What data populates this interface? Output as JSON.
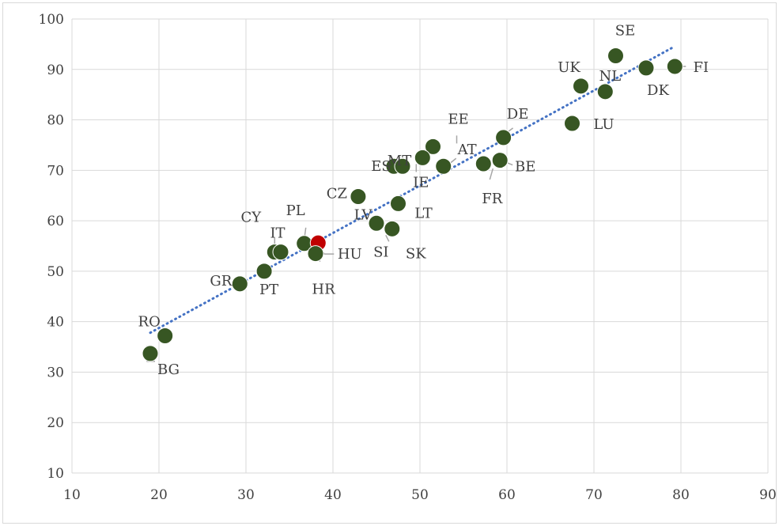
{
  "chart_data": {
    "type": "scatter",
    "xlim": [
      10,
      90
    ],
    "ylim": [
      10,
      100
    ],
    "x_ticks": [
      10,
      20,
      30,
      40,
      50,
      60,
      70,
      80,
      90
    ],
    "y_ticks": [
      10,
      20,
      30,
      40,
      50,
      60,
      70,
      80,
      90,
      100
    ],
    "grid": true,
    "legend": "none",
    "colors": {
      "point": "#375623",
      "highlight": "#c00000",
      "trendline": "#4472c4",
      "grid": "#d9d9d9",
      "leader": "#a6a6a6"
    },
    "trendline": {
      "style": "dotted",
      "from": [
        19,
        37.8
      ],
      "to": [
        79,
        94.3
      ]
    },
    "points": [
      {
        "label": "RO",
        "x": 20.7,
        "y": 37.2
      },
      {
        "label": "BG",
        "x": 19.0,
        "y": 33.7
      },
      {
        "label": "GR",
        "x": 29.3,
        "y": 47.5
      },
      {
        "label": "PT",
        "x": 32.1,
        "y": 50.0
      },
      {
        "label": "CY",
        "x": 33.3,
        "y": 53.8
      },
      {
        "label": "IT",
        "x": 34.0,
        "y": 53.8
      },
      {
        "label": "PL",
        "x": 36.7,
        "y": 55.5
      },
      {
        "label": "HU",
        "x": 38.3,
        "y": 55.6,
        "highlight": true
      },
      {
        "label": "HR",
        "x": 38.0,
        "y": 53.5
      },
      {
        "label": "CZ",
        "x": 42.9,
        "y": 64.8
      },
      {
        "label": "LV",
        "x": 45.0,
        "y": 59.5
      },
      {
        "label": "SI",
        "x": 46.8,
        "y": 58.4
      },
      {
        "label": "SK",
        "x": 46.8,
        "y": 58.4
      },
      {
        "label": "LT",
        "x": 47.5,
        "y": 63.4
      },
      {
        "label": "ES",
        "x": 47.0,
        "y": 70.8
      },
      {
        "label": "MT",
        "x": 48.0,
        "y": 70.8
      },
      {
        "label": "EE",
        "x": 51.5,
        "y": 74.7
      },
      {
        "label": "IE",
        "x": 50.3,
        "y": 72.5
      },
      {
        "label": "AT",
        "x": 52.7,
        "y": 70.8
      },
      {
        "label": "FR",
        "x": 57.3,
        "y": 71.3
      },
      {
        "label": "BE",
        "x": 59.2,
        "y": 72.0
      },
      {
        "label": "DE",
        "x": 59.6,
        "y": 76.5
      },
      {
        "label": "LU",
        "x": 67.5,
        "y": 79.3
      },
      {
        "label": "UK",
        "x": 68.5,
        "y": 86.7
      },
      {
        "label": "NL",
        "x": 71.3,
        "y": 85.6
      },
      {
        "label": "SE",
        "x": 72.5,
        "y": 92.7
      },
      {
        "label": "DK",
        "x": 76.0,
        "y": 90.3
      },
      {
        "label": "FI",
        "x": 79.3,
        "y": 90.6
      }
    ]
  }
}
